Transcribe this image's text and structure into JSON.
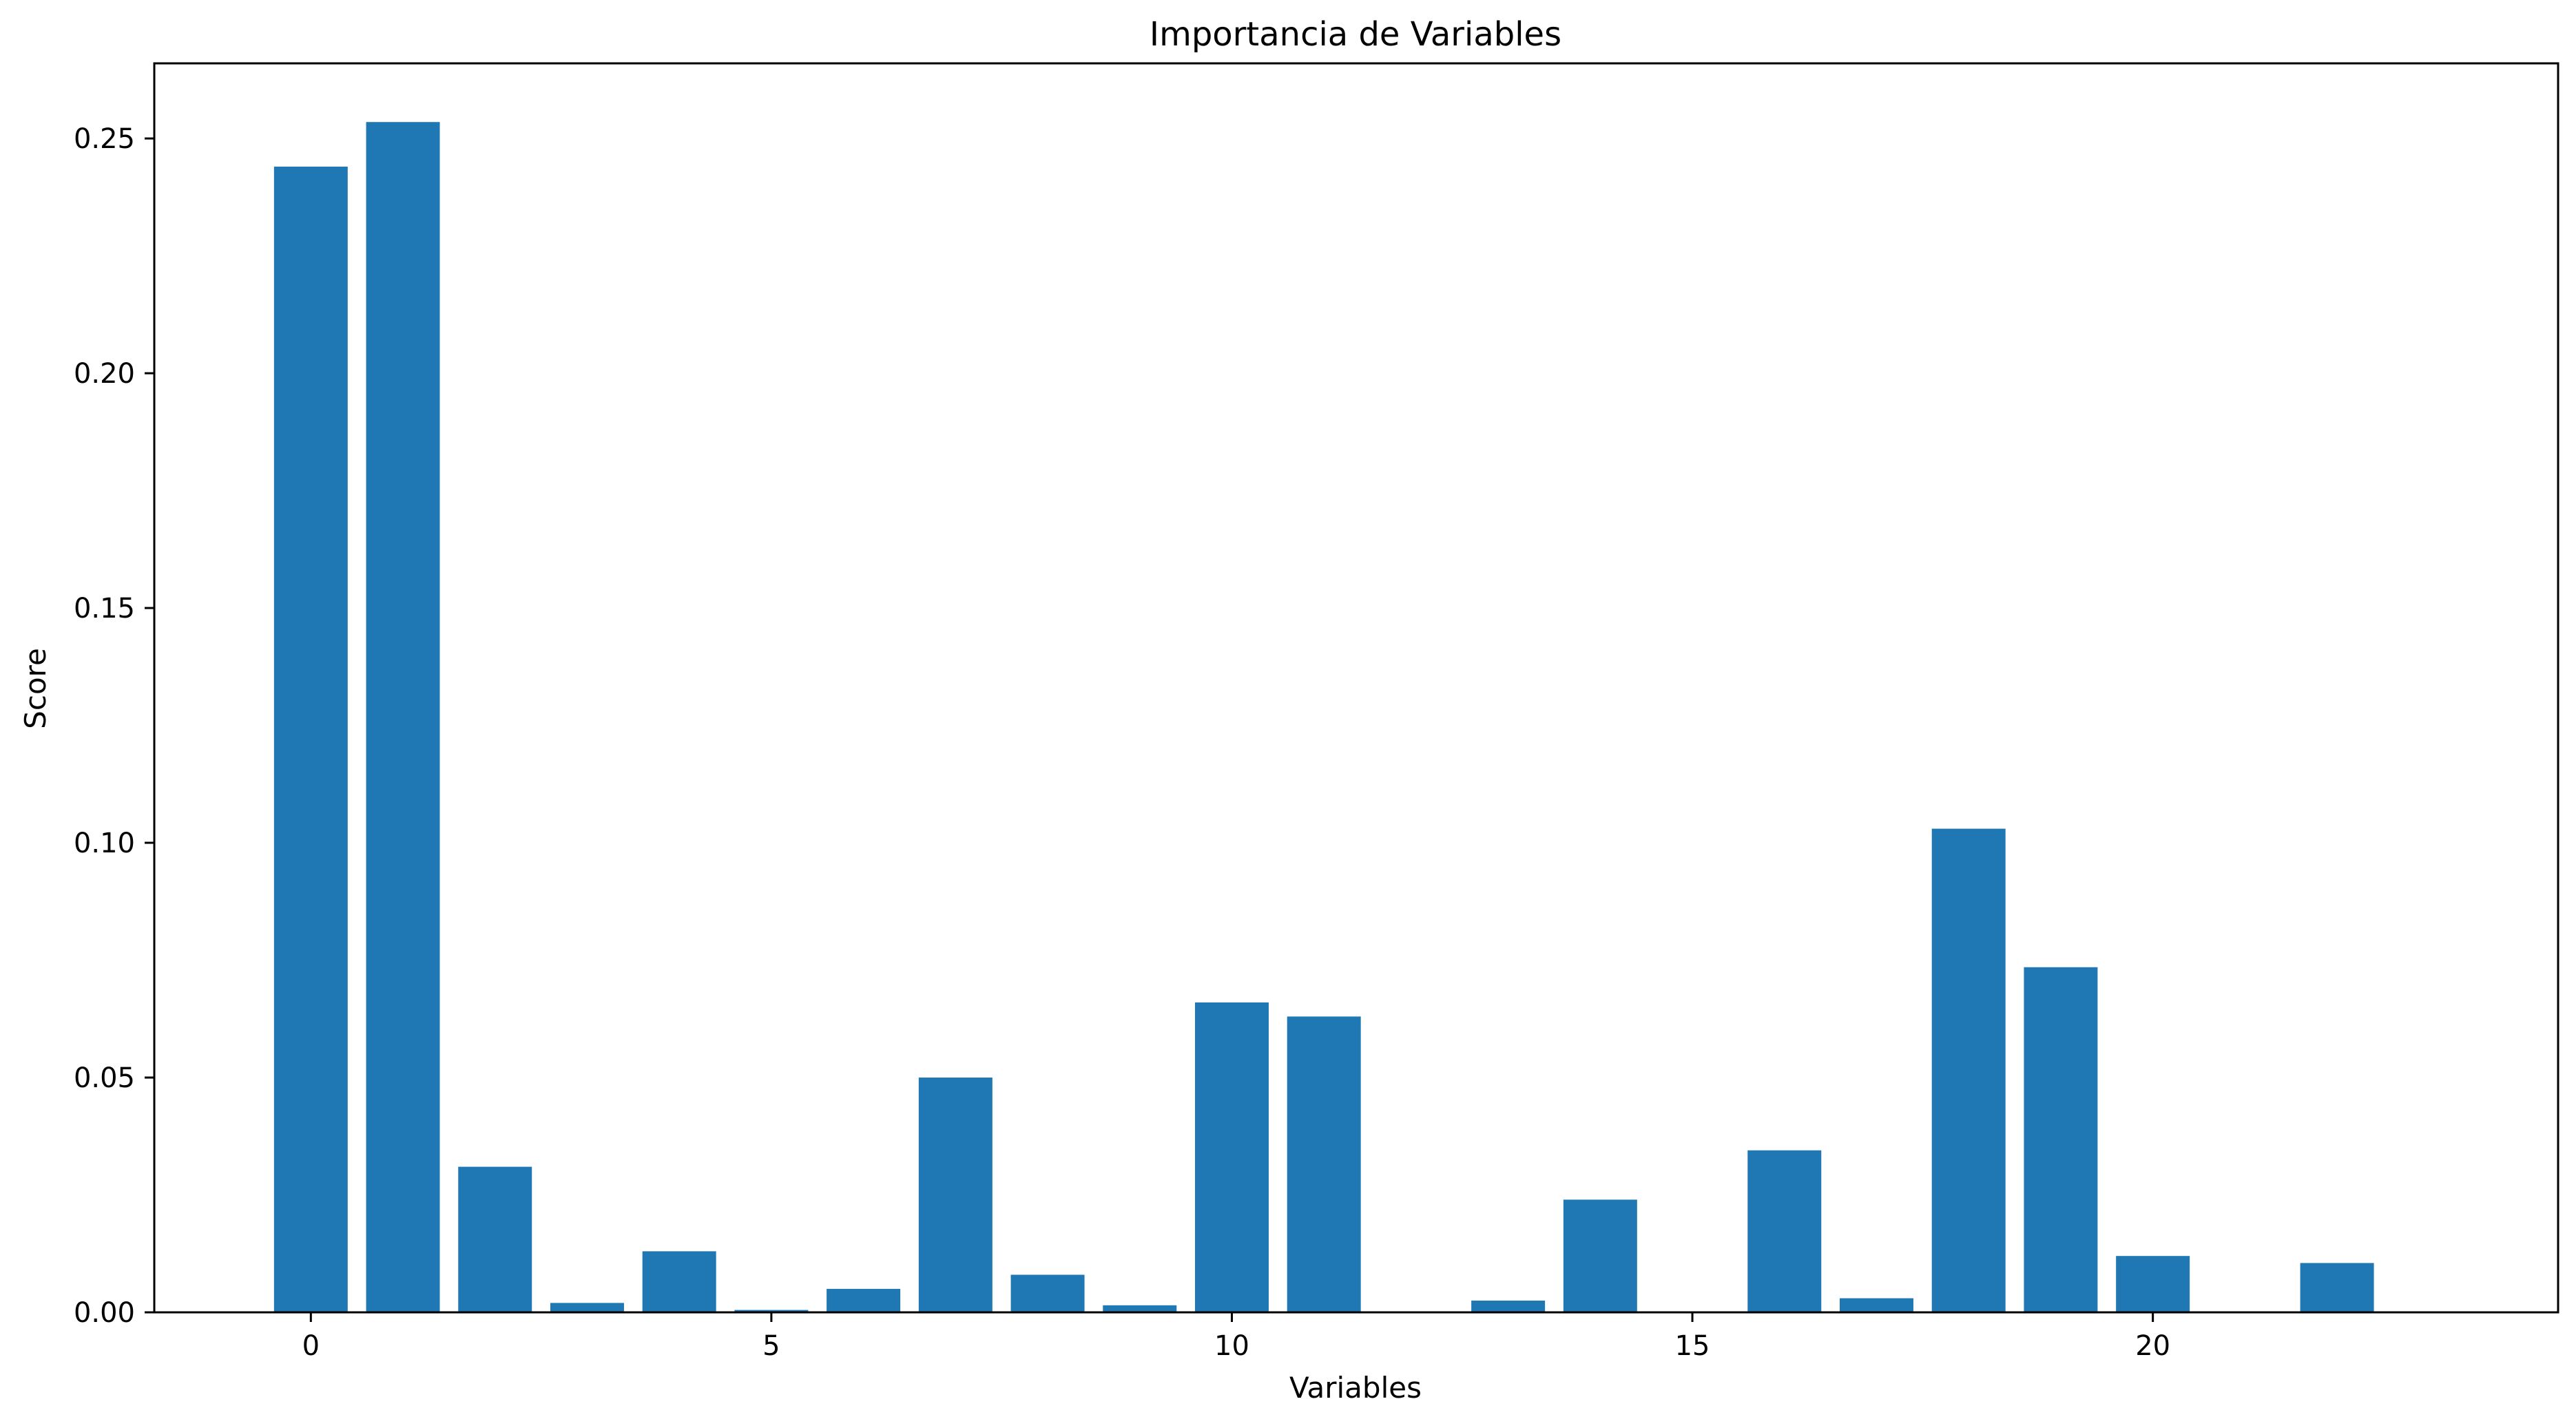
{
  "chart_data": {
    "type": "bar",
    "title": "Importancia de Variables",
    "xlabel": "Variables",
    "ylabel": "Score",
    "x": [
      0,
      1,
      2,
      3,
      4,
      5,
      6,
      7,
      8,
      9,
      10,
      11,
      12,
      13,
      14,
      15,
      16,
      17,
      18,
      19,
      20,
      21,
      22
    ],
    "values": [
      0.244,
      0.2535,
      0.031,
      0.002,
      0.013,
      0.0005,
      0.005,
      0.05,
      0.008,
      0.0015,
      0.066,
      0.063,
      0.0,
      0.0025,
      0.024,
      0.0,
      0.0345,
      0.003,
      0.103,
      0.0735,
      0.012,
      0.0,
      0.0105
    ],
    "xlim": [
      -1.7,
      24.4
    ],
    "ylim": [
      0,
      0.266
    ],
    "xticks": [
      0,
      5,
      10,
      15,
      20
    ],
    "xtick_labels": [
      "0",
      "5",
      "10",
      "15",
      "20"
    ],
    "yticks": [
      0,
      0.05,
      0.1,
      0.15,
      0.2,
      0.25
    ],
    "ytick_labels": [
      "0.00",
      "0.05",
      "0.10",
      "0.15",
      "0.20",
      "0.25"
    ],
    "grid": false,
    "colors": {
      "bar": "#1f77b4",
      "axis": "#000000"
    }
  }
}
